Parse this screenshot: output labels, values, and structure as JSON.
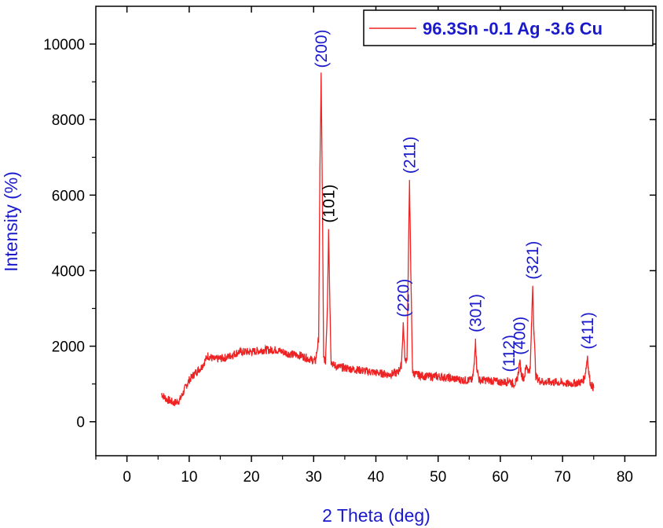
{
  "chart_data": {
    "type": "line",
    "title": "",
    "xlabel": "2 Theta (deg)",
    "ylabel": "Intensity (%)",
    "xlim": [
      -5,
      85
    ],
    "ylim": [
      -900,
      11000
    ],
    "x_ticks": [
      0,
      10,
      20,
      30,
      40,
      50,
      60,
      70,
      80
    ],
    "y_ticks": [
      0,
      2000,
      4000,
      6000,
      8000,
      10000
    ],
    "grid": false,
    "legend_position": "top-right",
    "colors": {
      "series": "#ee2222",
      "label_blue": "#1a1acc",
      "label_black": "#000000",
      "axis": "#000000"
    },
    "series": [
      {
        "name": "96.3Sn -0.1 Ag -3.6 Cu",
        "x": [
          5.5,
          6.0,
          6.5,
          7.0,
          7.5,
          8.0,
          8.5,
          9.0,
          9.5,
          10.0,
          11.0,
          12.0,
          13.0,
          14.0,
          16.0,
          18.0,
          20.0,
          22.0,
          24.0,
          26.0,
          28.0,
          29.5,
          30.3,
          30.8,
          31.0,
          31.2,
          31.4,
          31.6,
          31.9,
          32.2,
          32.4,
          32.6,
          32.8,
          33.2,
          34.0,
          36.0,
          38.0,
          40.0,
          42.0,
          43.5,
          44.1,
          44.4,
          44.7,
          45.0,
          45.2,
          45.4,
          45.6,
          45.9,
          46.5,
          48.0,
          50.0,
          52.0,
          54.0,
          55.5,
          55.8,
          56.0,
          56.2,
          56.6,
          58.0,
          60.0,
          61.0,
          61.4,
          62.0,
          62.6,
          62.9,
          63.1,
          63.4,
          63.8,
          64.2,
          64.5,
          64.8,
          65.0,
          65.2,
          65.4,
          65.7,
          66.2,
          67.0,
          69.0,
          71.0,
          73.0,
          73.5,
          73.8,
          74.0,
          74.2,
          74.5,
          75.0
        ],
        "y": [
          750,
          650,
          580,
          550,
          500,
          520,
          580,
          750,
          950,
          1100,
          1300,
          1450,
          1750,
          1650,
          1700,
          1850,
          1850,
          1900,
          1900,
          1800,
          1750,
          1650,
          1600,
          2200,
          6500,
          9200,
          6000,
          1700,
          1600,
          3000,
          5100,
          3200,
          1600,
          1500,
          1450,
          1400,
          1350,
          1300,
          1250,
          1300,
          1500,
          2600,
          1600,
          1700,
          4000,
          6400,
          4100,
          1300,
          1250,
          1200,
          1200,
          1150,
          1100,
          1100,
          1500,
          2200,
          1450,
          1100,
          1100,
          1050,
          1050,
          1100,
          1000,
          1050,
          1300,
          1600,
          1250,
          1150,
          1500,
          1350,
          1400,
          2500,
          3600,
          2400,
          1200,
          1100,
          1050,
          1050,
          1000,
          1050,
          1150,
          1450,
          1750,
          1300,
          1000,
          900
        ]
      }
    ],
    "annotations": [
      {
        "text": "(200)",
        "x": 31.2,
        "y": 9200,
        "color": "blue"
      },
      {
        "text": "(101)",
        "x": 32.4,
        "y": 5100,
        "color": "black"
      },
      {
        "text": "(220)",
        "x": 44.4,
        "y": 2600,
        "color": "blue"
      },
      {
        "text": "(211)",
        "x": 45.4,
        "y": 6400,
        "color": "blue"
      },
      {
        "text": "(301)",
        "x": 56.0,
        "y": 2200,
        "color": "blue"
      },
      {
        "text": "(112)",
        "x": 61.4,
        "y": 1150,
        "color": "blue"
      },
      {
        "text": "(400)",
        "x": 63.1,
        "y": 1600,
        "color": "blue"
      },
      {
        "text": "(321)",
        "x": 65.2,
        "y": 3600,
        "color": "blue"
      },
      {
        "text": "(411)",
        "x": 74.0,
        "y": 1750,
        "color": "blue"
      }
    ]
  }
}
